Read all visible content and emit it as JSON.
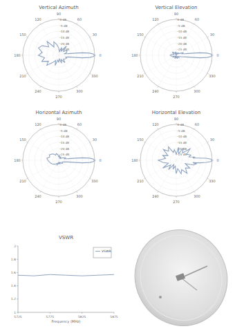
{
  "chart_data": [
    {
      "type": "polar",
      "title": "Vertical Azimuth",
      "color": "#8fa3c0",
      "x": [
        0,
        2,
        4,
        6,
        8,
        10,
        15,
        20,
        30,
        40,
        50,
        60,
        70,
        80,
        90,
        100,
        110,
        120,
        130,
        140,
        150,
        160,
        170,
        180,
        190,
        200,
        210,
        220,
        230,
        240,
        250,
        260,
        270,
        280,
        290,
        300,
        310,
        320,
        330,
        340,
        345,
        350,
        352,
        354,
        356,
        358
      ],
      "values": [
        0,
        -1,
        -4,
        -10,
        -18,
        -22,
        -25,
        -23,
        -22,
        -25,
        -20,
        -26,
        -23,
        -27,
        -24,
        -21,
        -18,
        -22,
        -15,
        -19,
        -14,
        -12,
        -16,
        -13,
        -18,
        -15,
        -20,
        -17,
        -22,
        -25,
        -21,
        -26,
        -24,
        -27,
        -23,
        -26,
        -22,
        -25,
        -24,
        -23,
        -24,
        -22,
        -18,
        -10,
        -4,
        -1
      ],
      "xticks": [
        0,
        30,
        60,
        90,
        120,
        150,
        180,
        210,
        240,
        270,
        300,
        330
      ],
      "ylim": [
        -30,
        0
      ],
      "yticks": [
        {
          "value": 0,
          "label": "0 dB"
        },
        {
          "value": -5,
          "label": "-5 dB"
        },
        {
          "value": -10,
          "label": "-10 dB"
        },
        {
          "value": -15,
          "label": "-15 dB"
        },
        {
          "value": -20,
          "label": "-20 dB"
        },
        {
          "value": -25,
          "label": "-25 dB"
        }
      ],
      "grid": true
    },
    {
      "type": "polar",
      "title": "Vertical Elevation",
      "color": "#8fa3c0",
      "x": [
        0,
        2,
        4,
        6,
        8,
        10,
        15,
        20,
        30,
        40,
        50,
        60,
        70,
        80,
        90,
        100,
        110,
        120,
        130,
        140,
        150,
        160,
        170,
        180,
        190,
        200,
        210,
        220,
        230,
        240,
        250,
        260,
        270,
        280,
        290,
        300,
        310,
        320,
        330,
        340,
        345,
        350,
        352,
        354,
        356,
        358
      ],
      "values": [
        0,
        -1,
        -4,
        -10,
        -18,
        -22,
        -25,
        -24,
        -27,
        -28,
        -27,
        -29,
        -28,
        -28,
        -29,
        -27,
        -28,
        -29,
        -27,
        -26,
        -27,
        -28,
        -26,
        -25,
        -26,
        -28,
        -27,
        -28,
        -29,
        -28,
        -27,
        -29,
        -28,
        -28,
        -27,
        -29,
        -28,
        -27,
        -28,
        -27,
        -25,
        -22,
        -18,
        -10,
        -4,
        -1
      ],
      "xticks": [
        0,
        30,
        60,
        90,
        120,
        150,
        180,
        210,
        240,
        270,
        300,
        330
      ],
      "ylim": [
        -30,
        0
      ],
      "yticks": [
        {
          "value": 0,
          "label": "0 dB"
        },
        {
          "value": -5,
          "label": "-5 dB"
        },
        {
          "value": -10,
          "label": "-10 dB"
        },
        {
          "value": -15,
          "label": "-15 dB"
        },
        {
          "value": -20,
          "label": "-20 dB"
        },
        {
          "value": -25,
          "label": "-25 dB"
        }
      ],
      "grid": true
    },
    {
      "type": "polar",
      "title": "Horizontal Azimuth",
      "color": "#8fa3c0",
      "x": [
        0,
        2,
        4,
        6,
        8,
        10,
        15,
        20,
        30,
        40,
        50,
        60,
        70,
        80,
        90,
        100,
        110,
        120,
        130,
        140,
        150,
        160,
        170,
        180,
        190,
        200,
        210,
        220,
        230,
        240,
        250,
        260,
        270,
        280,
        290,
        300,
        310,
        320,
        330,
        340,
        345,
        350,
        352,
        354,
        356,
        358
      ],
      "values": [
        0,
        -1,
        -4,
        -10,
        -18,
        -22,
        -25,
        -24,
        -26,
        -27,
        -28,
        -27,
        -28,
        -26,
        -27,
        -25,
        -24,
        -25,
        -23,
        -22,
        -21,
        -22,
        -20,
        -21,
        -22,
        -23,
        -24,
        -25,
        -26,
        -27,
        -26,
        -28,
        -27,
        -28,
        -27,
        -28,
        -27,
        -26,
        -27,
        -26,
        -25,
        -22,
        -18,
        -10,
        -4,
        -1
      ],
      "xticks": [
        0,
        30,
        60,
        90,
        120,
        150,
        180,
        210,
        240,
        270,
        300,
        330
      ],
      "ylim": [
        -30,
        0
      ],
      "yticks": [
        {
          "value": 0,
          "label": "0 dB"
        },
        {
          "value": -5,
          "label": "-5 dB"
        },
        {
          "value": -10,
          "label": "-10 dB"
        },
        {
          "value": -15,
          "label": "-15 dB"
        },
        {
          "value": -20,
          "label": "-20 dB"
        },
        {
          "value": -25,
          "label": "-25 dB"
        }
      ],
      "grid": true
    },
    {
      "type": "polar",
      "title": "Horizontal Elevation",
      "color": "#8fa3c0",
      "x": [
        0,
        2,
        4,
        6,
        8,
        10,
        15,
        20,
        30,
        40,
        50,
        60,
        70,
        80,
        90,
        100,
        110,
        120,
        130,
        140,
        150,
        160,
        170,
        180,
        190,
        200,
        210,
        220,
        230,
        240,
        250,
        260,
        270,
        280,
        290,
        300,
        310,
        320,
        330,
        340,
        345,
        350,
        352,
        354,
        356,
        358
      ],
      "values": [
        0,
        -1,
        -5,
        -12,
        -16,
        -14,
        -19,
        -17,
        -20,
        -15,
        -22,
        -18,
        -24,
        -19,
        -25,
        -21,
        -23,
        -17,
        -20,
        -16,
        -22,
        -18,
        -21,
        -15,
        -19,
        -23,
        -17,
        -24,
        -20,
        -26,
        -22,
        -25,
        -19,
        -23,
        -18,
        -21,
        -16,
        -20,
        -17,
        -22,
        -15,
        -13,
        -16,
        -10,
        -5,
        -1
      ],
      "xticks": [
        0,
        30,
        60,
        90,
        120,
        150,
        180,
        210,
        240,
        270,
        300,
        330
      ],
      "ylim": [
        -30,
        0
      ],
      "yticks": [
        {
          "value": 0,
          "label": "0 dB"
        },
        {
          "value": -5,
          "label": "-5 dB"
        },
        {
          "value": -10,
          "label": "-10 dB"
        },
        {
          "value": -15,
          "label": "-15 dB"
        },
        {
          "value": -20,
          "label": "-20 dB"
        },
        {
          "value": -25,
          "label": "-25 dB"
        }
      ],
      "grid": true
    },
    {
      "type": "line",
      "title": "VSWR",
      "xlabel": "Frequency (MHz)",
      "x": [
        5725,
        5750,
        5775,
        5800,
        5825,
        5850,
        5875
      ],
      "series": [
        {
          "name": "VSWR",
          "color": "#8fa3c0",
          "values": [
            1.56,
            1.55,
            1.57,
            1.56,
            1.55,
            1.56,
            1.57
          ]
        }
      ],
      "xlim": [
        5725,
        5875
      ],
      "xticks": [
        5725,
        5775,
        5825,
        5875
      ],
      "ylim": [
        1,
        2
      ],
      "yticks": [
        1,
        1.2,
        1.4,
        1.6,
        1.8,
        2
      ],
      "legend": "upper right",
      "grid": false
    }
  ]
}
